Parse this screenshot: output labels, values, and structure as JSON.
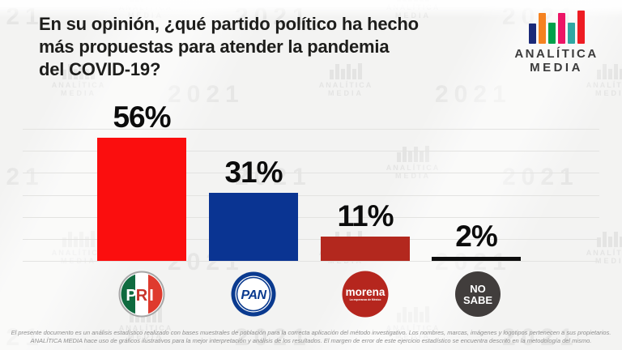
{
  "title": {
    "lines": [
      "En su opinión, ¿qué partido político ha hecho",
      "más propuestas para atender la pandemia",
      "del COVID-19?"
    ]
  },
  "brand": {
    "name_line1": "ANALÍTICA",
    "name_line2": "MEDIA",
    "logo_bar_colors": [
      "#1b2a78",
      "#f58220",
      "#00a14b",
      "#ec1566",
      "#2fa8a3",
      "#ee1c23"
    ],
    "logo_bar_heights": [
      25,
      38,
      26,
      38,
      26,
      41
    ]
  },
  "chart_data": {
    "type": "bar",
    "title": "En su opinión, ¿qué partido político ha hecho más propuestas para atender la pandemia del COVID-19?",
    "categories": [
      "PRI",
      "PAN",
      "Morena",
      "No sabe"
    ],
    "values": [
      56,
      31,
      11,
      2
    ],
    "value_labels": [
      "56%",
      "31%",
      "11%",
      "2%"
    ],
    "bar_colors": [
      "#fb0e0e",
      "#0a3492",
      "#b3281e",
      "#0d0d0d"
    ],
    "xlabel": "",
    "ylabel": "",
    "ylim": [
      0,
      60
    ],
    "grid": true,
    "gridline_step": 10,
    "legend": "none"
  },
  "party_badges": {
    "pri": {
      "letters": [
        "P",
        "R",
        "I"
      ]
    },
    "pan": {
      "label": "PAN"
    },
    "morena": {
      "label": "morena",
      "sublabel": "La esperanza de México"
    },
    "no_sabe": {
      "line1": "NO",
      "line2": "SABE"
    }
  },
  "watermark": {
    "year": "2021",
    "brand_line1": "ANALÍTICA",
    "brand_line2": "MEDIA"
  },
  "footer": {
    "line1": "El presente documento es un análisis estadístico realizado con bases muestrales de población para la correcta aplicación del método investigativo. Los nombres, marcas, imágenes y logotipos pertenecen a sus propietarios.",
    "line2": "ANALÍTICA MEDIA hace uso de gráficos ilustrativos para la mejor interpretación y análisis de los resultados. El margen de error de este ejercicio estadístico se encuentra descrito en la metodología del mismo."
  }
}
